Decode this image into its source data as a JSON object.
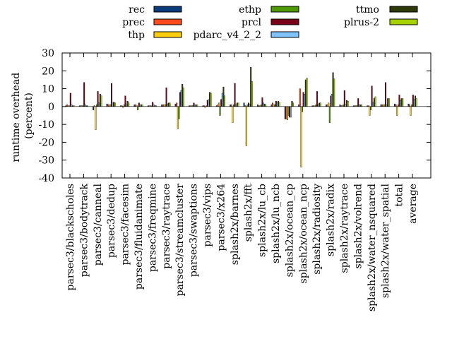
{
  "chart_data": {
    "type": "bar",
    "ylabel": "runtime overhead\n(percent)",
    "ylim": [
      -40,
      30
    ],
    "yticks": [
      -40,
      -30,
      -20,
      -10,
      0,
      10,
      20,
      30
    ],
    "grid": false,
    "legend_position": "top",
    "categories": [
      "parsec3/blackscholes",
      "parsec3/bodytrack",
      "parsec3/canneal",
      "parsec3/dedup",
      "parsec3/facesim",
      "parsec3/fluidanimate",
      "parsec3/freqmine",
      "parsec3/raytrace",
      "parsec3/streamcluster",
      "parsec3/swaptions",
      "parsec3/vips",
      "parsec3/x264",
      "splash2x/barnes",
      "splash2x/fft",
      "splash2x/lu_cb",
      "splash2x/lu_ncb",
      "splash2x/ocean_cp",
      "splash2x/ocean_ncp",
      "splash2x/radiosity",
      "splash2x/radix",
      "splash2x/raytrace",
      "splash2x/volrend",
      "splash2x/water_nsquared",
      "splash2x/water_spatial",
      "total",
      "average"
    ],
    "series": [
      {
        "name": "rec",
        "color": "#0a3b7a",
        "values": [
          0.5,
          0.5,
          -2,
          1.5,
          0.5,
          1,
          0.5,
          1,
          1.5,
          0.5,
          0.5,
          0.5,
          1,
          2,
          1,
          1,
          -7,
          1,
          0.5,
          1,
          1,
          0.5,
          0.5,
          1,
          1.5,
          1.5
        ]
      },
      {
        "name": "prec",
        "color": "#ff4a1c",
        "values": [
          1,
          0.5,
          0.5,
          1,
          0.5,
          1,
          0.5,
          1,
          2,
          0.5,
          0.5,
          1,
          1,
          0.5,
          0.5,
          2,
          -7,
          10,
          0.5,
          1,
          0.5,
          0.5,
          0.5,
          1,
          1,
          1
        ]
      },
      {
        "name": "thp",
        "color": "#ffcf0f",
        "values": [
          0.5,
          0.5,
          -13,
          1,
          -0.5,
          0.5,
          0.5,
          1,
          -12.5,
          0.5,
          -0.5,
          2,
          -9,
          -22,
          0.5,
          1,
          -7.5,
          -34,
          0.5,
          2,
          0.5,
          0.5,
          -5,
          1,
          -5,
          -5
        ]
      },
      {
        "name": "ethp",
        "color": "#4e9a06",
        "values": [
          0.5,
          0.5,
          1,
          1,
          1,
          -2,
          0.5,
          1,
          -7,
          0.5,
          0.5,
          -5,
          1,
          1,
          1,
          1,
          -5,
          -3,
          1,
          -9,
          1,
          0.5,
          -2,
          1,
          1,
          1
        ]
      },
      {
        "name": "prcl",
        "color": "#7a0019",
        "values": [
          7.5,
          13.5,
          8.5,
          13,
          6,
          2,
          2.5,
          10.5,
          8,
          2,
          3.5,
          4,
          13,
          2,
          5,
          3,
          -6,
          8,
          8.5,
          6,
          9,
          4.5,
          11.5,
          13.5,
          6.5,
          6.5
        ]
      },
      {
        "name": "pdarc_v4_2_2",
        "color": "#80c4ff",
        "values": [
          1,
          1,
          2,
          2,
          1,
          1,
          1,
          1.5,
          9,
          1,
          4,
          7.5,
          1,
          1.5,
          2,
          2,
          -6,
          7,
          1,
          7,
          1,
          1,
          2.5,
          1,
          3.5,
          4
        ]
      },
      {
        "name": "ttmo",
        "color": "#2e3a0a",
        "values": [
          0.5,
          0.5,
          7,
          2.5,
          3,
          1,
          0.5,
          2,
          12.5,
          1,
          8,
          11,
          2,
          22,
          1.5,
          3,
          3,
          15,
          2,
          19,
          3.5,
          1,
          4.5,
          4.5,
          4.5,
          6
        ]
      },
      {
        "name": "plrus-2",
        "color": "#a6d000",
        "values": [
          0.5,
          0.5,
          6,
          2,
          2,
          1,
          0.5,
          2,
          10.5,
          1,
          7.5,
          6,
          2,
          14,
          1,
          2.5,
          2,
          16,
          2,
          15.5,
          3,
          1,
          5.5,
          4.5,
          4.5,
          4.5
        ]
      }
    ]
  }
}
